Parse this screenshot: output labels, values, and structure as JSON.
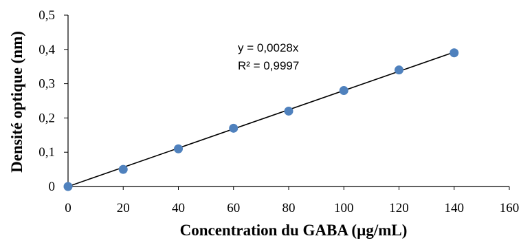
{
  "chart_data": {
    "type": "scatter",
    "title": "",
    "xlabel": "Concentration du GABA (µg/mL)",
    "ylabel": "Densité optique (nm)",
    "x_ticks": [
      "0",
      "20",
      "40",
      "60",
      "80",
      "100",
      "120",
      "140",
      "160"
    ],
    "y_ticks": [
      "0",
      "0,1",
      "0,2",
      "0,3",
      "0,4",
      "0,5"
    ],
    "xlim": [
      0,
      160
    ],
    "ylim": [
      0,
      0.5
    ],
    "grid": false,
    "legend": "none",
    "series": [
      {
        "x": [
          0,
          20,
          40,
          60,
          80,
          100,
          120,
          140
        ],
        "y": [
          0,
          0.05,
          0.11,
          0.17,
          0.22,
          0.28,
          0.34,
          0.39
        ],
        "marker_color": "#4f81bd"
      }
    ],
    "trendline": {
      "type": "linear",
      "slope": 0.0028,
      "intercept": 0,
      "x_range": [
        0,
        140
      ],
      "color": "#000000"
    },
    "annotations": {
      "equation": "y = 0,0028x",
      "r_squared": "R² = 0,9997"
    }
  }
}
